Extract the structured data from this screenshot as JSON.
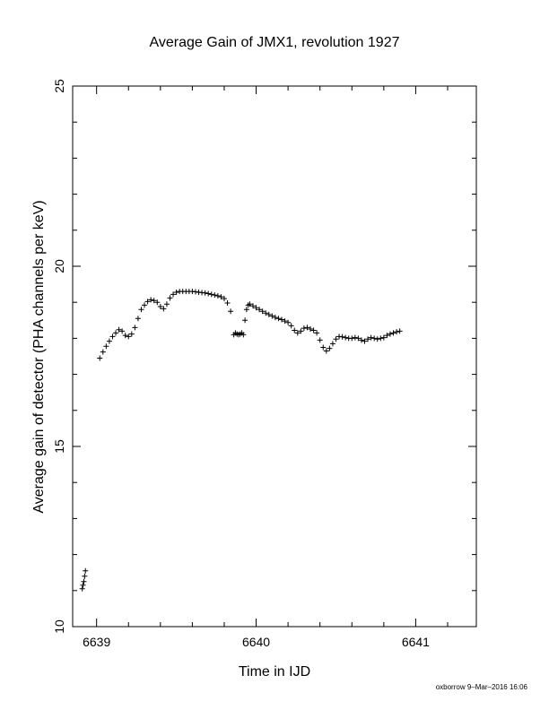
{
  "chart_data": {
    "type": "scatter",
    "title": "Average Gain of JMX1, revolution 1927",
    "xlabel": "Time in IJD",
    "ylabel": "Average gain of detector (PHA channels per keV)",
    "xlim": [
      6638.85,
      6641.38
    ],
    "ylim": [
      10,
      25
    ],
    "x_ticks": [
      6639,
      6640,
      6641
    ],
    "y_ticks": [
      10,
      15,
      20,
      25
    ],
    "marker": "plus",
    "grid": false,
    "footer": "oxborrow  9–Mar–2016 16:06",
    "series": [
      {
        "name": "",
        "x": [
          6638.91,
          6638.915,
          6638.92,
          6638.925,
          6638.93,
          6639.02,
          6639.04,
          6639.06,
          6639.08,
          6639.1,
          6639.12,
          6639.14,
          6639.16,
          6639.18,
          6639.2,
          6639.22,
          6639.24,
          6639.26,
          6639.28,
          6639.3,
          6639.32,
          6639.34,
          6639.36,
          6639.38,
          6639.4,
          6639.42,
          6639.44,
          6639.46,
          6639.48,
          6639.5,
          6639.52,
          6639.54,
          6639.56,
          6639.58,
          6639.6,
          6639.62,
          6639.64,
          6639.66,
          6639.68,
          6639.7,
          6639.72,
          6639.74,
          6639.76,
          6639.78,
          6639.8,
          6639.82,
          6639.84,
          6639.86,
          6639.87,
          6639.88,
          6639.89,
          6639.9,
          6639.91,
          6639.92,
          6639.93,
          6639.94,
          6639.95,
          6639.96,
          6639.98,
          6640.0,
          6640.02,
          6640.04,
          6640.06,
          6640.08,
          6640.1,
          6640.12,
          6640.14,
          6640.16,
          6640.18,
          6640.2,
          6640.22,
          6640.24,
          6640.26,
          6640.28,
          6640.3,
          6640.32,
          6640.34,
          6640.36,
          6640.38,
          6640.4,
          6640.42,
          6640.44,
          6640.46,
          6640.48,
          6640.5,
          6640.52,
          6640.54,
          6640.56,
          6640.58,
          6640.6,
          6640.62,
          6640.64,
          6640.66,
          6640.68,
          6640.7,
          6640.72,
          6640.74,
          6640.76,
          6640.78,
          6640.8,
          6640.82,
          6640.84,
          6640.86,
          6640.88,
          6640.9
        ],
        "y": [
          11.05,
          11.15,
          11.25,
          11.4,
          11.55,
          17.45,
          17.62,
          17.78,
          17.92,
          18.05,
          18.15,
          18.24,
          18.2,
          18.08,
          18.05,
          18.12,
          18.3,
          18.55,
          18.8,
          18.92,
          19.02,
          19.07,
          19.05,
          19.0,
          18.88,
          18.82,
          18.95,
          19.12,
          19.22,
          19.28,
          19.3,
          19.3,
          19.3,
          19.3,
          19.3,
          19.29,
          19.28,
          19.27,
          19.26,
          19.24,
          19.22,
          19.2,
          19.18,
          19.15,
          19.1,
          18.98,
          18.75,
          18.1,
          18.15,
          18.12,
          18.1,
          18.12,
          18.15,
          18.1,
          18.5,
          18.8,
          18.92,
          18.95,
          18.9,
          18.85,
          18.8,
          18.75,
          18.7,
          18.66,
          18.62,
          18.58,
          18.55,
          18.52,
          18.48,
          18.44,
          18.35,
          18.22,
          18.15,
          18.2,
          18.28,
          18.3,
          18.26,
          18.22,
          18.15,
          17.95,
          17.75,
          17.65,
          17.72,
          17.85,
          17.98,
          18.05,
          18.04,
          18.02,
          18.0,
          18.0,
          18.02,
          18.0,
          17.95,
          17.92,
          17.98,
          18.02,
          18.0,
          17.98,
          18.0,
          18.02,
          18.08,
          18.12,
          18.15,
          18.18,
          18.2
        ]
      }
    ]
  }
}
